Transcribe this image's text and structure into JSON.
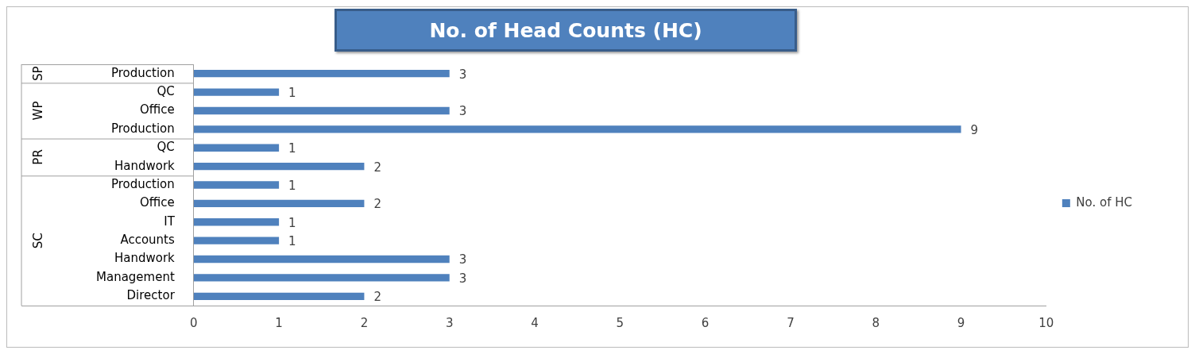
{
  "chart_data": {
    "type": "bar",
    "orientation": "horizontal",
    "title": "No. of Head Counts (HC)",
    "categories": [
      "Production",
      "QC",
      "Office",
      "Production",
      "QC",
      "Handwork",
      "Production",
      "Office",
      "IT",
      "Accounts",
      "Handwork",
      "Management",
      "Director"
    ],
    "series": [
      {
        "name": "No. of HC",
        "color": "#4f81bd",
        "values": [
          3,
          1,
          3,
          9,
          1,
          2,
          1,
          2,
          1,
          1,
          3,
          3,
          2
        ]
      }
    ],
    "xlim": [
      0,
      10
    ],
    "xticks": [
      0,
      1,
      2,
      3,
      4,
      5,
      6,
      7,
      8,
      9,
      10
    ],
    "grid": false,
    "legend": "right",
    "data_labels": true,
    "annotations": [
      "SP",
      "WP",
      "PR",
      "SC"
    ]
  }
}
